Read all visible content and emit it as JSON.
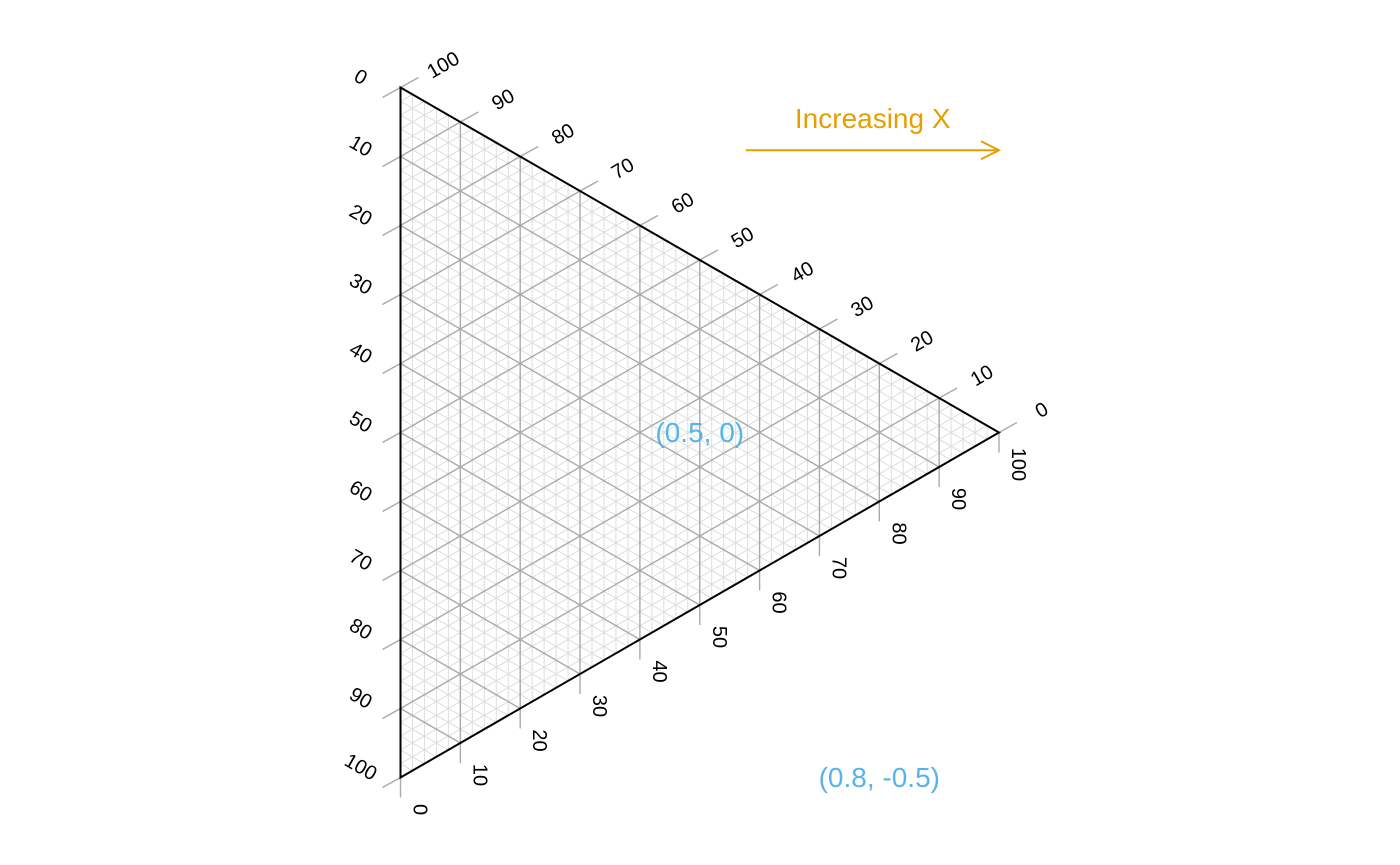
{
  "chart_data": {
    "type": "ternary",
    "axes": [
      {
        "side": "left",
        "ticks": [
          "0",
          "10",
          "20",
          "30",
          "40",
          "50",
          "60",
          "70",
          "80",
          "90",
          "100"
        ]
      },
      {
        "side": "upper-right",
        "ticks": [
          "100",
          "90",
          "80",
          "70",
          "60",
          "50",
          "40",
          "30",
          "20",
          "10",
          "0"
        ]
      },
      {
        "side": "lower-right",
        "ticks": [
          "0",
          "10",
          "20",
          "30",
          "40",
          "50",
          "60",
          "70",
          "80",
          "90",
          "100"
        ]
      }
    ],
    "grid": {
      "major_step": 10,
      "minor_step": 2,
      "major_color": "#aaaaaa",
      "minor_color": "#dddddd"
    },
    "xlim": [
      0,
      1
    ],
    "ylim": [
      -0.5,
      0.5
    ],
    "annotations": [
      {
        "label": "Increasing X",
        "color": "#e69f00",
        "arrow": {
          "from": [
            0.577,
            0.409
          ],
          "to": [
            1.0,
            0.409
          ]
        },
        "x": 0.789,
        "y": 0.455
      },
      {
        "label": "(0.5, 0)",
        "color": "#56b4e9",
        "x": 0.5,
        "y": 0.0
      },
      {
        "label": "(0.8, -0.5)",
        "color": "#56b4e9",
        "x": 0.8,
        "y": -0.5
      }
    ],
    "colors": {
      "outline": "#000000",
      "tick": "#aaaaaa"
    }
  }
}
